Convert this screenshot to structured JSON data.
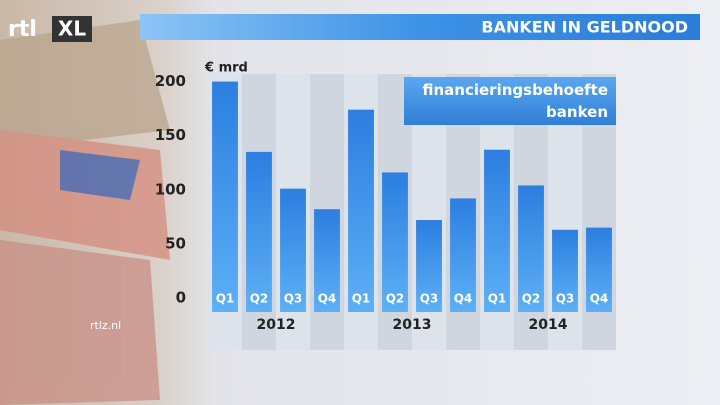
{
  "chart_data": {
    "type": "bar",
    "title": "BANKEN IN GELDNOOD",
    "logo": [
      "rtl",
      "XL"
    ],
    "watermark": "rtlz.nl",
    "y_label": "€ mrd",
    "categories": [
      "Q1",
      "Q2",
      "Q3",
      "Q4",
      "Q1",
      "Q2",
      "Q3",
      "Q4",
      "Q1",
      "Q2",
      "Q3",
      "Q4"
    ],
    "groups": [
      "2012",
      "2013",
      "2014"
    ],
    "series": [
      {
        "name": "financieringsbehoefte banken",
        "color": "#2f80dd",
        "values": [
          213,
          148,
          114,
          95,
          187,
          129,
          85,
          105,
          150,
          117,
          76,
          78
        ]
      }
    ],
    "ylim": [
      0,
      220
    ],
    "yticks": [
      0,
      50,
      100,
      150,
      200
    ],
    "grid": false
  }
}
